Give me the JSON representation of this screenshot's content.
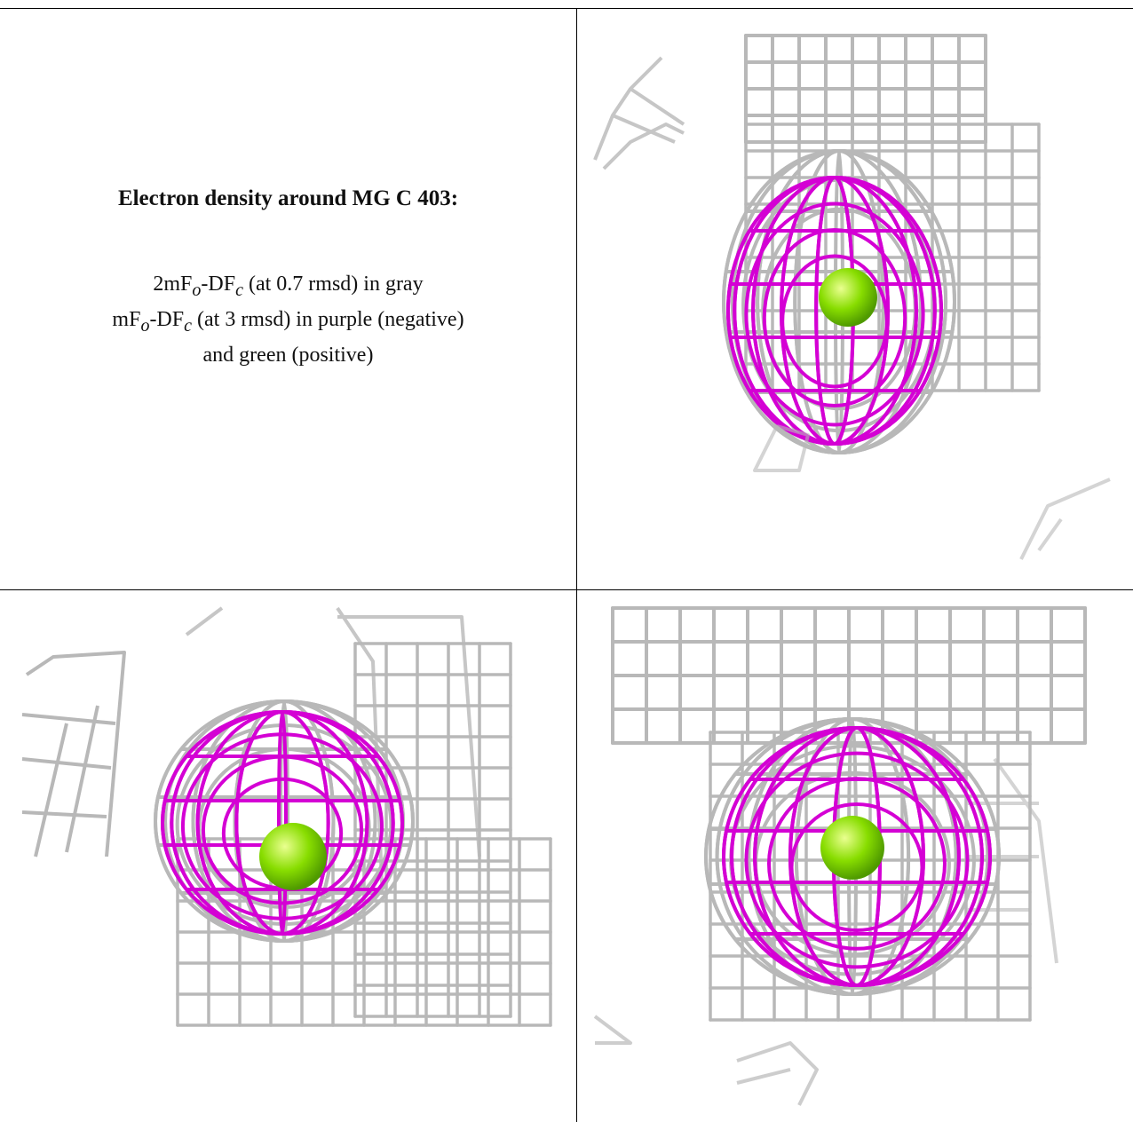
{
  "caption_panel": {
    "title": "Electron density around MG C 403:",
    "line1_pre": "2mF",
    "line1_sub_o": "o",
    "line1_mid": "-DF",
    "line1_sub_c": "c",
    "line1_post": " (at 0.7 rmsd) in gray",
    "line2_pre": "mF",
    "line2_sub_o": "o",
    "line2_mid": "-DF",
    "line2_sub_c": "c",
    "line2_post": " (at 3 rmsd) in purple (negative)",
    "line3": "and green (positive)"
  },
  "colors": {
    "map_2fofc": "#b8b8b8",
    "map_2fofc_dark": "#7a7a7a",
    "map_fofc_negative": "#d400d4",
    "map_fofc_positive": "#22aa22",
    "mg_atom": "#88dd00"
  },
  "panels": [
    {
      "view": "view-1"
    },
    {
      "view": "view-2"
    },
    {
      "view": "view-3"
    }
  ]
}
